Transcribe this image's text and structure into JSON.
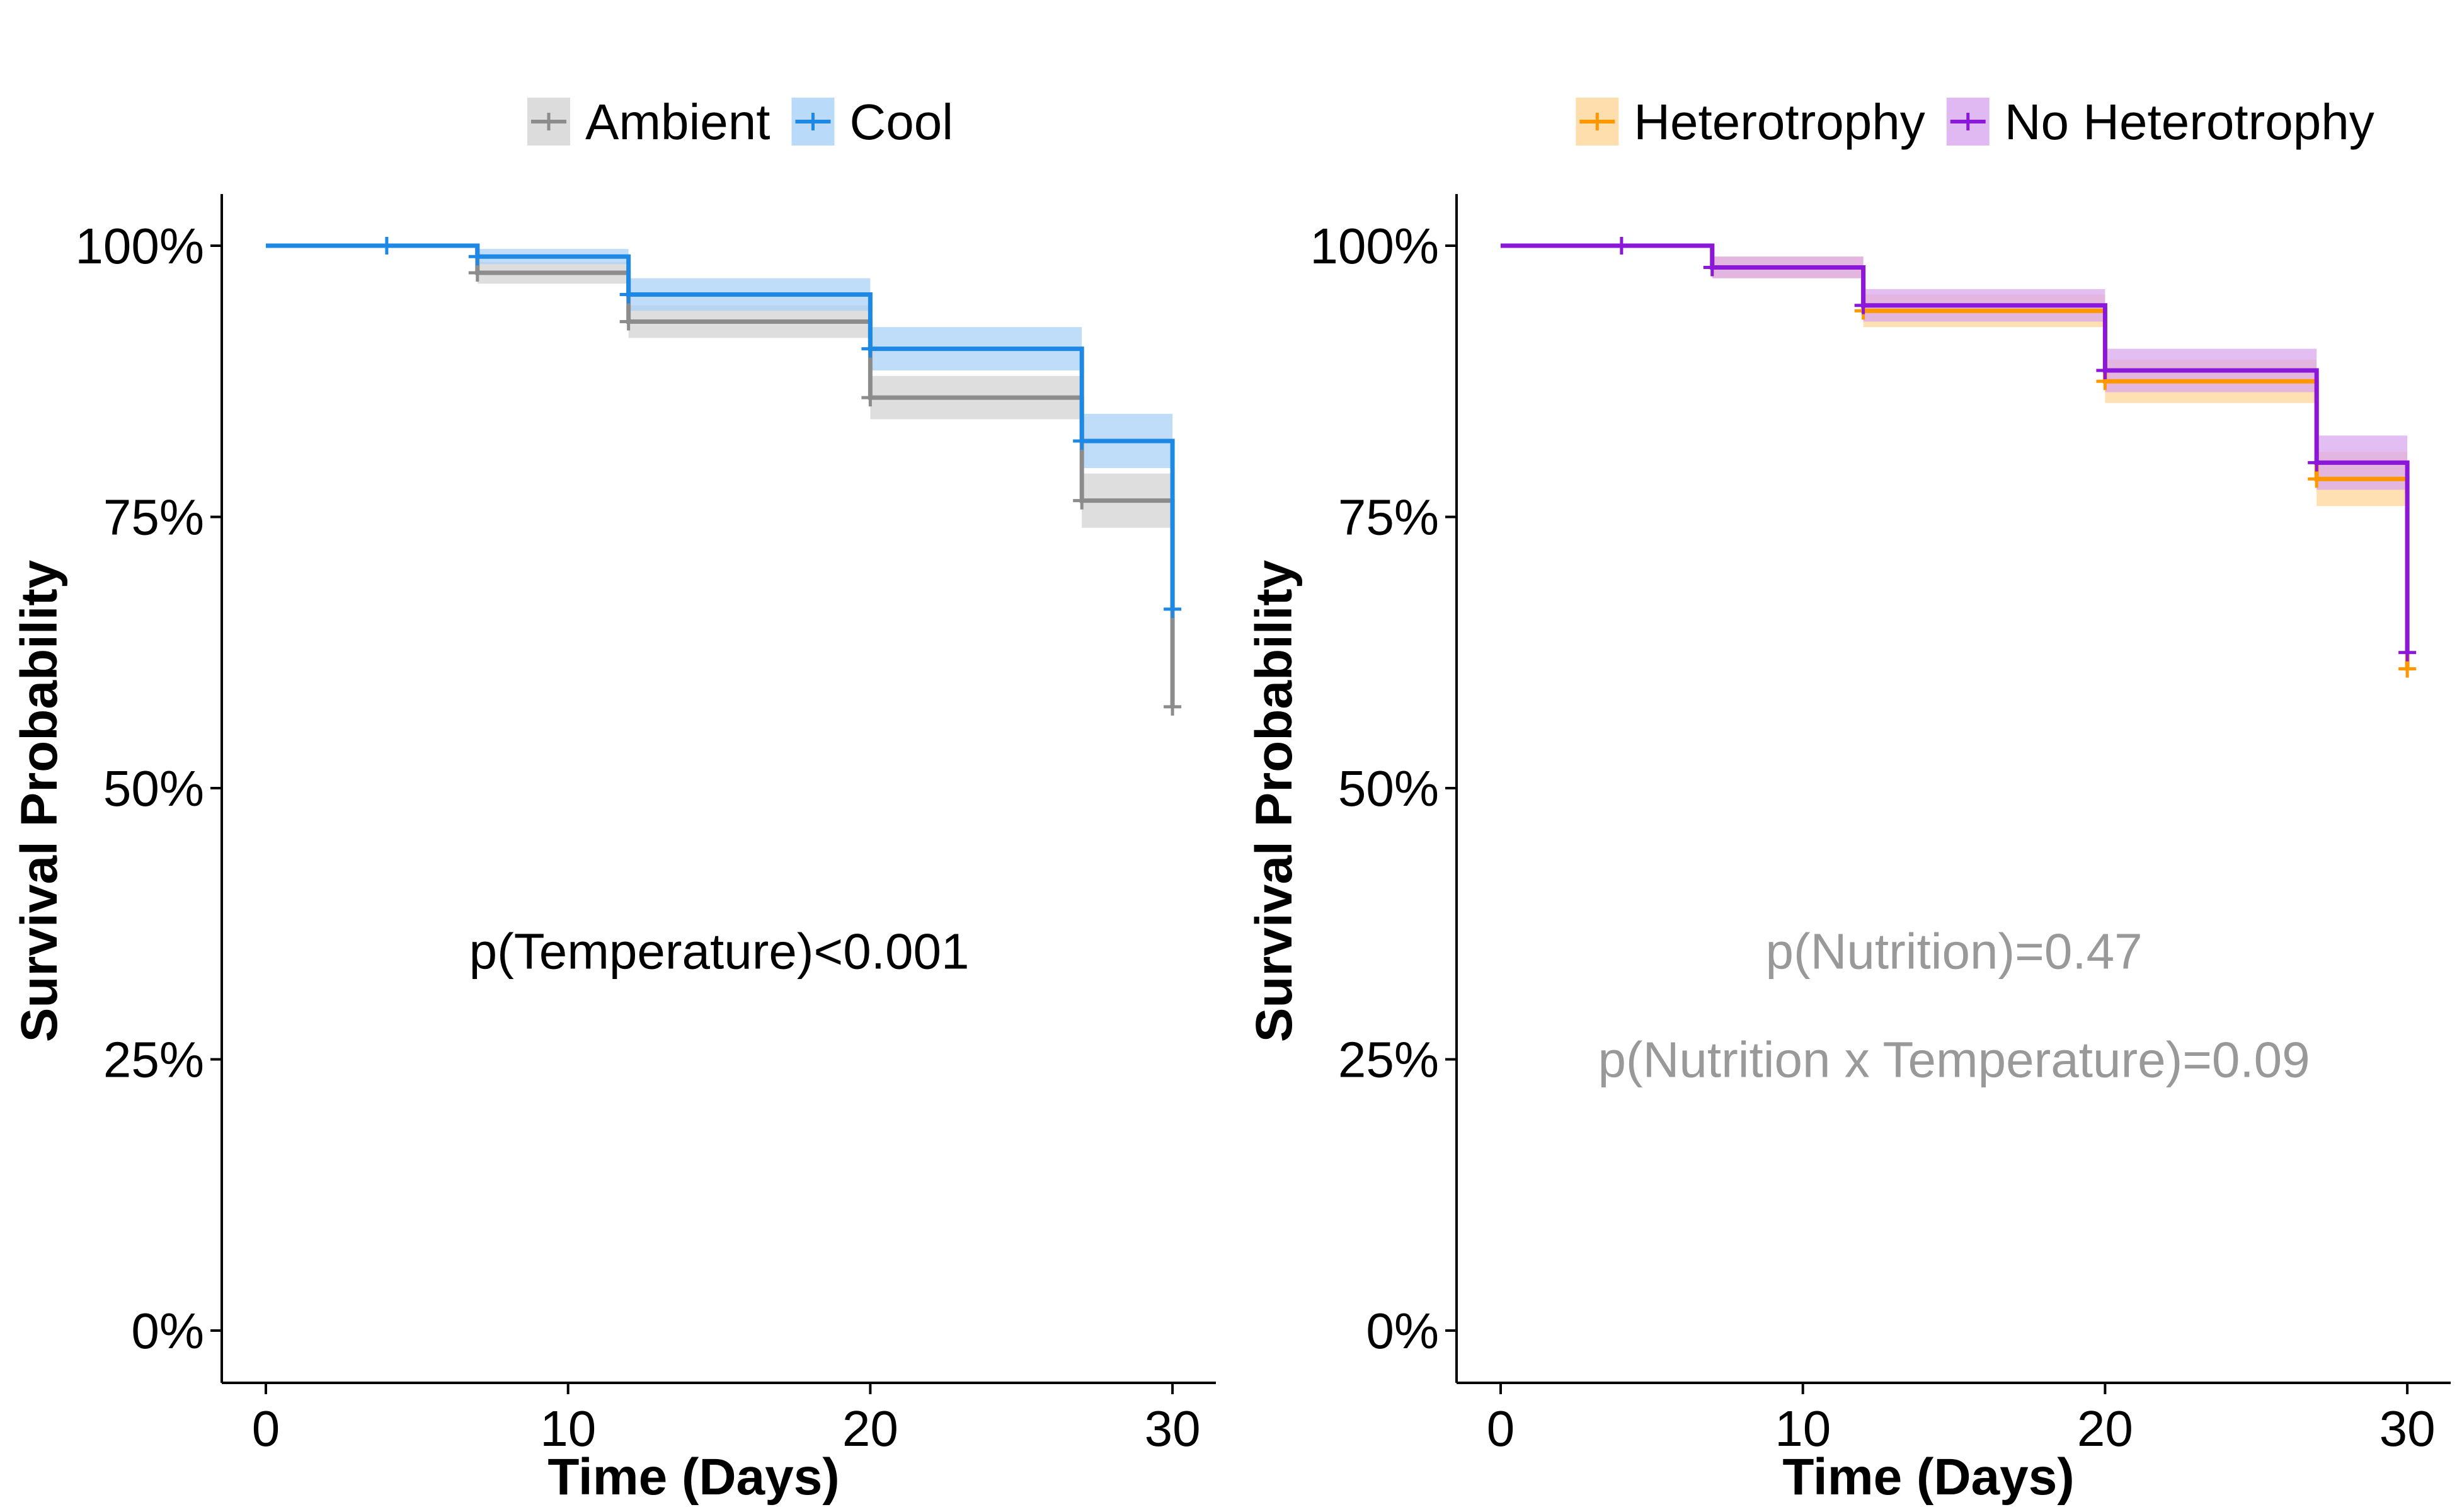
{
  "chart_data": [
    {
      "type": "line",
      "subtype": "kaplan-meier step",
      "xlabel": "Time (Days)",
      "ylabel": "Survival Probability",
      "xlim": [
        0,
        31.5
      ],
      "ylim": [
        -0.05,
        1.05
      ],
      "x_ticks": [
        0,
        10,
        20,
        30
      ],
      "x_tick_labels": [
        "0",
        "10",
        "20",
        "30"
      ],
      "y_ticks": [
        0,
        0.25,
        0.5,
        0.75,
        1.0
      ],
      "y_tick_labels": [
        "0%",
        "25%",
        "50%",
        "75%",
        "100%"
      ],
      "grid": false,
      "legend_position": "top",
      "annotations": [
        {
          "text": "p(Temperature)<0.001",
          "x": 15,
          "y": 0.35,
          "color": "#000000"
        }
      ],
      "series": [
        {
          "name": "Ambient",
          "color": "#8c8c8c",
          "band_color": "#d3d3d3",
          "steps": [
            {
              "x0": 0,
              "x1": 7,
              "y": 1.0,
              "lo": 1.0,
              "hi": 1.0
            },
            {
              "x0": 7,
              "x1": 12,
              "y": 0.975,
              "lo": 0.965,
              "hi": 0.985
            },
            {
              "x0": 12,
              "x1": 20,
              "y": 0.93,
              "lo": 0.915,
              "hi": 0.945
            },
            {
              "x0": 20,
              "x1": 27,
              "y": 0.86,
              "lo": 0.84,
              "hi": 0.88
            },
            {
              "x0": 27,
              "x1": 30,
              "y": 0.765,
              "lo": 0.74,
              "hi": 0.79
            }
          ],
          "final_drop": 0.575,
          "censor_marks": [
            {
              "x": 7,
              "y": 0.975
            },
            {
              "x": 12,
              "y": 0.93
            },
            {
              "x": 20,
              "y": 0.86
            },
            {
              "x": 27,
              "y": 0.765
            },
            {
              "x": 30,
              "y": 0.575
            }
          ]
        },
        {
          "name": "Cool",
          "color": "#1e88e5",
          "band_color": "#a9d1f7",
          "steps": [
            {
              "x0": 0,
              "x1": 7,
              "y": 1.0,
              "lo": 1.0,
              "hi": 1.0
            },
            {
              "x0": 7,
              "x1": 12,
              "y": 0.99,
              "lo": 0.983,
              "hi": 0.997
            },
            {
              "x0": 12,
              "x1": 20,
              "y": 0.955,
              "lo": 0.94,
              "hi": 0.97
            },
            {
              "x0": 20,
              "x1": 27,
              "y": 0.905,
              "lo": 0.885,
              "hi": 0.925
            },
            {
              "x0": 27,
              "x1": 30,
              "y": 0.82,
              "lo": 0.795,
              "hi": 0.845
            }
          ],
          "final_drop": 0.665,
          "censor_marks": [
            {
              "x": 4,
              "y": 1.0
            },
            {
              "x": 7,
              "y": 0.99
            },
            {
              "x": 12,
              "y": 0.955
            },
            {
              "x": 20,
              "y": 0.905
            },
            {
              "x": 27,
              "y": 0.82
            },
            {
              "x": 30,
              "y": 0.665
            }
          ]
        }
      ]
    },
    {
      "type": "line",
      "subtype": "kaplan-meier step",
      "xlabel": "Time (Days)",
      "ylabel": "Survival Probability",
      "xlim": [
        0,
        31.5
      ],
      "ylim": [
        -0.05,
        1.05
      ],
      "x_ticks": [
        0,
        10,
        20,
        30
      ],
      "x_tick_labels": [
        "0",
        "10",
        "20",
        "30"
      ],
      "y_ticks": [
        0,
        0.25,
        0.5,
        0.75,
        1.0
      ],
      "y_tick_labels": [
        "0%",
        "25%",
        "50%",
        "75%",
        "100%"
      ],
      "grid": false,
      "legend_position": "top",
      "annotations": [
        {
          "text": "p(Nutrition)=0.47",
          "x": 15,
          "y": 0.35,
          "color": "#999999"
        },
        {
          "text": "p(Nutrition x Temperature)=0.09",
          "x": 15,
          "y": 0.25,
          "color": "#999999"
        }
      ],
      "series": [
        {
          "name": "Heterotrophy",
          "color": "#ff9800",
          "band_color": "#ffd699",
          "steps": [
            {
              "x0": 0,
              "x1": 7,
              "y": 1.0,
              "lo": 1.0,
              "hi": 1.0
            },
            {
              "x0": 7,
              "x1": 12,
              "y": 0.98,
              "lo": 0.97,
              "hi": 0.99
            },
            {
              "x0": 12,
              "x1": 20,
              "y": 0.94,
              "lo": 0.925,
              "hi": 0.955
            },
            {
              "x0": 20,
              "x1": 27,
              "y": 0.875,
              "lo": 0.855,
              "hi": 0.895
            },
            {
              "x0": 27,
              "x1": 30,
              "y": 0.785,
              "lo": 0.76,
              "hi": 0.81
            }
          ],
          "final_drop": 0.61,
          "censor_marks": [
            {
              "x": 7,
              "y": 0.98
            },
            {
              "x": 12,
              "y": 0.94
            },
            {
              "x": 20,
              "y": 0.875
            },
            {
              "x": 27,
              "y": 0.785
            },
            {
              "x": 30,
              "y": 0.61
            }
          ]
        },
        {
          "name": "No Heterotrophy",
          "color": "#8b17d8",
          "band_color": "#d9a8ef",
          "steps": [
            {
              "x0": 0,
              "x1": 7,
              "y": 1.0,
              "lo": 1.0,
              "hi": 1.0
            },
            {
              "x0": 7,
              "x1": 12,
              "y": 0.98,
              "lo": 0.97,
              "hi": 0.99
            },
            {
              "x0": 12,
              "x1": 20,
              "y": 0.945,
              "lo": 0.93,
              "hi": 0.96
            },
            {
              "x0": 20,
              "x1": 27,
              "y": 0.885,
              "lo": 0.865,
              "hi": 0.905
            },
            {
              "x0": 27,
              "x1": 30,
              "y": 0.8,
              "lo": 0.775,
              "hi": 0.825
            }
          ],
          "final_drop": 0.625,
          "censor_marks": [
            {
              "x": 4,
              "y": 1.0
            },
            {
              "x": 7,
              "y": 0.98
            },
            {
              "x": 12,
              "y": 0.945
            },
            {
              "x": 20,
              "y": 0.885
            },
            {
              "x": 27,
              "y": 0.8
            },
            {
              "x": 30,
              "y": 0.625
            }
          ]
        }
      ]
    }
  ]
}
